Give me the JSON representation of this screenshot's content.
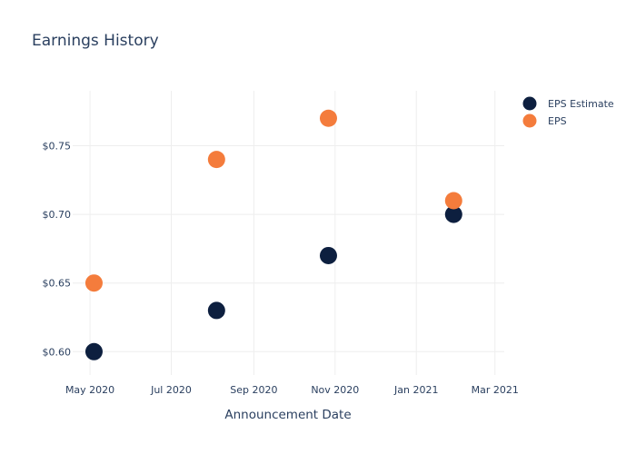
{
  "chart_data": {
    "type": "scatter",
    "title": "Earnings History",
    "xlabel": "Announcement Date",
    "ylabel": "",
    "x_ticks": [
      "May 2020",
      "Jul 2020",
      "Sep 2020",
      "Nov 2020",
      "Jan 2021",
      "Mar 2021"
    ],
    "x_tick_dates": [
      "2020-05-01",
      "2020-07-01",
      "2020-09-01",
      "2020-11-01",
      "2021-01-01",
      "2021-03-01"
    ],
    "x_range": [
      "2020-04-18",
      "2021-03-08"
    ],
    "y_ticks": [
      "$0.60",
      "$0.65",
      "$0.70",
      "$0.75"
    ],
    "y_tick_values": [
      0.6,
      0.65,
      0.7,
      0.75
    ],
    "ylim": [
      0.583,
      0.79
    ],
    "grid": true,
    "legend_position": "top-right",
    "series": [
      {
        "name": "EPS Estimate",
        "color": "#0d1f3f",
        "points": [
          {
            "x": "2020-05-04",
            "y": 0.6
          },
          {
            "x": "2020-08-04",
            "y": 0.63
          },
          {
            "x": "2020-10-27",
            "y": 0.67
          },
          {
            "x": "2021-01-29",
            "y": 0.7
          }
        ]
      },
      {
        "name": "EPS",
        "color": "#f47c3c",
        "points": [
          {
            "x": "2020-05-04",
            "y": 0.65
          },
          {
            "x": "2020-08-04",
            "y": 0.74
          },
          {
            "x": "2020-10-27",
            "y": 0.77
          },
          {
            "x": "2021-01-29",
            "y": 0.71
          }
        ]
      }
    ]
  }
}
